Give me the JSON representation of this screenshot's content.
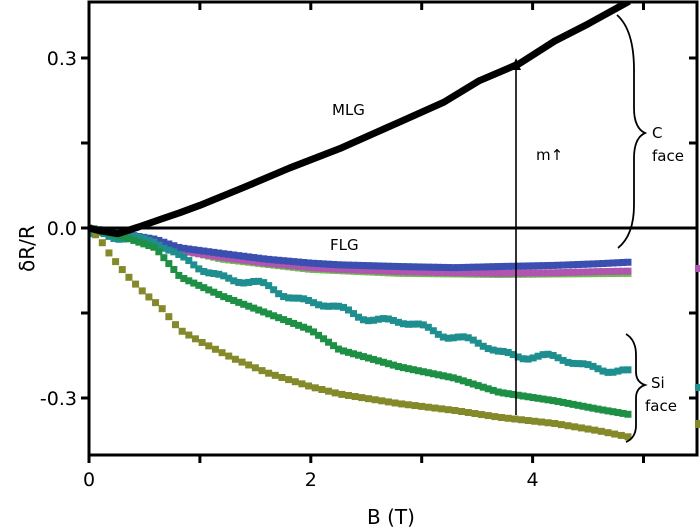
{
  "chart_data": {
    "type": "scatter",
    "title": "",
    "xlabel": "B (T)",
    "ylabel": "δR/R",
    "xlim": [
      0,
      5.5
    ],
    "ylim": [
      -0.38,
      0.4
    ],
    "x_ticks": [
      0,
      2,
      4
    ],
    "x_minor_ticks": [
      1,
      3,
      5
    ],
    "y_ticks": [
      -0.3,
      0.0,
      0.3
    ],
    "y_tick_labels": [
      "-0.3",
      "0.0",
      "0.3"
    ],
    "y_minor_ticks": [
      -0.15,
      0.15
    ],
    "grid": false,
    "legend": null,
    "zero_line": true,
    "series": [
      {
        "name": "MLG",
        "group": "C face",
        "color": "#000000",
        "x": [
          0,
          0.1,
          0.26,
          0.45,
          0.64,
          0.82,
          1.0,
          1.4,
          1.81,
          2.26,
          2.8,
          3.2,
          3.52,
          3.88,
          4.2,
          4.5,
          4.87
        ],
        "y": [
          0.0,
          -0.005,
          -0.01,
          0.002,
          0.015,
          0.027,
          0.04,
          0.072,
          0.106,
          0.14,
          0.187,
          0.222,
          0.26,
          0.29,
          0.33,
          0.36,
          0.4
        ]
      },
      {
        "name": "FLG (blue)",
        "group": "C face",
        "color": "#3b4fb0",
        "x": [
          0,
          0.3,
          0.6,
          0.82,
          1.2,
          1.6,
          2.0,
          2.26,
          2.8,
          3.3,
          3.7,
          4.2,
          4.6,
          4.9
        ],
        "y": [
          0.0,
          -0.01,
          -0.02,
          -0.035,
          -0.045,
          -0.055,
          -0.062,
          -0.065,
          -0.068,
          -0.07,
          -0.068,
          -0.066,
          -0.063,
          -0.06
        ]
      },
      {
        "name": "FLG (magenta)",
        "group": "C face",
        "color": "#b055b0",
        "x": [
          0,
          0.3,
          0.6,
          0.82,
          1.2,
          1.6,
          2.0,
          2.26,
          2.8,
          3.3,
          3.7,
          4.2,
          4.6,
          4.9
        ],
        "y": [
          0.0,
          -0.012,
          -0.025,
          -0.04,
          -0.052,
          -0.062,
          -0.07,
          -0.073,
          -0.077,
          -0.079,
          -0.08,
          -0.079,
          -0.077,
          -0.076
        ]
      },
      {
        "name": "FLG (light green)",
        "group": "C face",
        "color": "#6cc04a",
        "x": [
          0,
          0.6,
          1.2,
          2.0,
          2.8,
          3.7,
          4.9
        ],
        "y": [
          0.0,
          -0.028,
          -0.055,
          -0.073,
          -0.08,
          -0.082,
          -0.08
        ]
      },
      {
        "name": "Si face (teal)",
        "group": "Si face",
        "color": "#1f8e8e",
        "x": [
          0,
          0.2,
          0.4,
          0.6,
          0.82,
          1.0,
          1.3,
          1.6,
          2.0,
          2.26,
          2.6,
          3.0,
          3.3,
          3.7,
          4.0,
          4.3,
          4.6,
          4.9
        ],
        "y": [
          -0.01,
          -0.02,
          -0.015,
          -0.02,
          -0.056,
          -0.07,
          -0.09,
          -0.105,
          -0.13,
          -0.145,
          -0.16,
          -0.175,
          -0.19,
          -0.22,
          -0.225,
          -0.235,
          -0.245,
          -0.26
        ]
      },
      {
        "name": "Si face (green)",
        "group": "Si face",
        "color": "#1e9046",
        "x": [
          0,
          0.3,
          0.6,
          0.82,
          1.2,
          1.6,
          2.0,
          2.26,
          2.8,
          3.3,
          3.7,
          4.2,
          4.6,
          4.9
        ],
        "y": [
          0.0,
          -0.015,
          -0.035,
          -0.086,
          -0.12,
          -0.15,
          -0.18,
          -0.215,
          -0.245,
          -0.265,
          -0.29,
          -0.305,
          -0.32,
          -0.33
        ]
      },
      {
        "name": "Si face (olive)",
        "group": "Si face",
        "color": "#848a2a",
        "x": [
          0,
          0.1,
          0.2,
          0.35,
          0.5,
          0.65,
          0.82,
          1.0,
          1.3,
          1.6,
          2.0,
          2.26,
          2.8,
          3.3,
          3.7,
          4.2,
          4.6,
          4.9
        ],
        "y": [
          0.0,
          -0.02,
          -0.05,
          -0.085,
          -0.115,
          -0.14,
          -0.18,
          -0.2,
          -0.23,
          -0.255,
          -0.28,
          -0.293,
          -0.31,
          -0.322,
          -0.334,
          -0.345,
          -0.358,
          -0.37
        ]
      }
    ],
    "annotations": [
      {
        "text": "MLG",
        "x": 2.3,
        "y": 0.21
      },
      {
        "text": "FLG",
        "x": 2.3,
        "y": -0.03
      },
      {
        "text": "m",
        "arrow": "↑",
        "x": 4.0,
        "y": 0.13
      },
      {
        "text": "C",
        "sub": "face",
        "bracket": "C face",
        "x": 5.0,
        "y": 0.17
      },
      {
        "text": "Si",
        "sub": "face",
        "bracket": "Si face",
        "x": 5.0,
        "y": -0.29
      },
      {
        "type": "vertical-arrow",
        "x": 3.85,
        "y_from": -0.33,
        "y_to": 0.3
      }
    ]
  },
  "labels": {
    "xlabel": "B (T)",
    "ylabel": "δR/R",
    "mlg": "MLG",
    "flg": "FLG",
    "arrow_label": "m↑",
    "c_face_1": "C",
    "c_face_2": "face",
    "si_face_1": "Si",
    "si_face_2": "face"
  }
}
